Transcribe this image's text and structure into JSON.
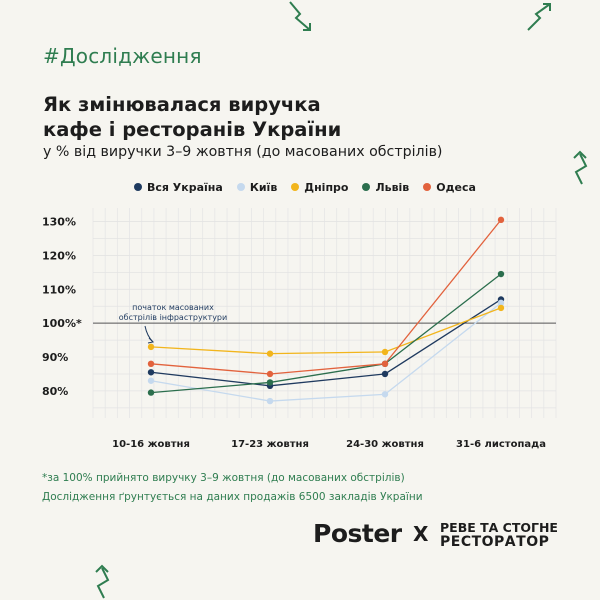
{
  "hashtag": "#Дослідження",
  "title_line1": "Як змінювалася виручка",
  "title_line2": "кафе і ресторанів України",
  "subtitle": "у % від виручки 3–9 жовтня (до масованих обстрілів)",
  "chart_data": {
    "type": "line",
    "categories": [
      "10-16 жовтня",
      "17-23 жовтня",
      "24-30 жовтня",
      "31-6 листопада"
    ],
    "y_ticks": [
      {
        "value": 130,
        "label": "130%"
      },
      {
        "value": 120,
        "label": "120%"
      },
      {
        "value": 110,
        "label": "110%"
      },
      {
        "value": 100,
        "label": "100%*"
      },
      {
        "value": 90,
        "label": "90%"
      },
      {
        "value": 80,
        "label": "80%"
      }
    ],
    "ylim": [
      72,
      134
    ],
    "legend_position": "top",
    "series": [
      {
        "name": "Вся Україна",
        "color": "#1f3a5f",
        "values": [
          85.5,
          81.5,
          85,
          107
        ]
      },
      {
        "name": "Київ",
        "color": "#c5d9ee",
        "values": [
          83,
          77,
          79,
          106
        ]
      },
      {
        "name": "Дніпро",
        "color": "#f2b51c",
        "values": [
          93,
          91,
          91.5,
          104.5
        ]
      },
      {
        "name": "Львів",
        "color": "#2b6e4d",
        "values": [
          79.5,
          82.5,
          88,
          114.5
        ]
      },
      {
        "name": "Одеса",
        "color": "#e2623d",
        "values": [
          88,
          85,
          88,
          130.5
        ]
      }
    ],
    "annotation": {
      "line1": "початок масованих",
      "line2": "обстрілів інфраструктури",
      "at_category": "10-16 жовтня"
    }
  },
  "footnote": "*за 100% прийнято виручку 3–9 жовтня (до масованих обстрілів)",
  "source": "Дослідження ґрунтується на даних продажів 6500 закладів України",
  "logo_poster": "Poster",
  "logo_x": "X",
  "partner_line1": "РЕВЕ ТА СТОГНЕ",
  "partner_line2": "РЕСТОРАТОР",
  "colors": {
    "accent_green": "#2f7d50",
    "background": "#f6f5f0"
  },
  "decor_icons": [
    "zigzag-arrow-icon",
    "zigzag-arrow-icon",
    "zigzag-arrow-icon",
    "zigzag-arrow-icon"
  ]
}
